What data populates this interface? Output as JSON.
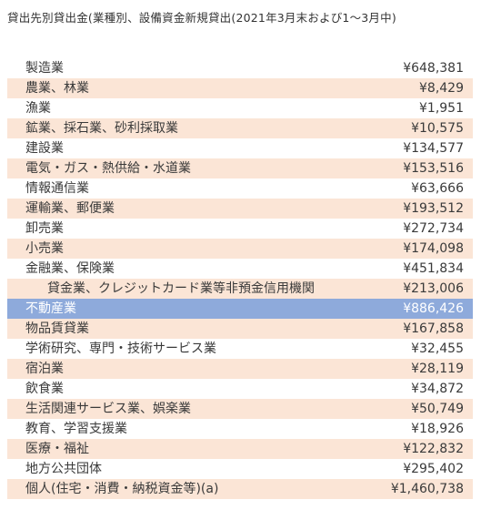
{
  "title": "貸出先別貸出金(業種別、設備資金新規貸出(2021年3月末および1～3月中)",
  "colors": {
    "alt_row": "#fbe5d6",
    "highlight_row": "#8eaadb",
    "highlight_text": "#ffffff"
  },
  "rows": [
    {
      "label": "製造業",
      "value": "¥648,381"
    },
    {
      "label": "農業、林業",
      "value": "¥8,429"
    },
    {
      "label": "漁業",
      "value": "¥1,951"
    },
    {
      "label": "鉱業、採石業、砂利採取業",
      "value": "¥10,575"
    },
    {
      "label": "建設業",
      "value": "¥134,577"
    },
    {
      "label": "電気・ガス・熱供給・水道業",
      "value": "¥153,516"
    },
    {
      "label": "情報通信業",
      "value": "¥63,666"
    },
    {
      "label": "運輸業、郵便業",
      "value": "¥193,512"
    },
    {
      "label": "卸売業",
      "value": "¥272,734"
    },
    {
      "label": "小売業",
      "value": "¥174,098"
    },
    {
      "label": "金融業、保険業",
      "value": "¥451,834"
    },
    {
      "label": "貸金業、クレジットカード業等非預金信用機関",
      "value": "¥213,006"
    },
    {
      "label": "不動産業",
      "value": "¥886,426"
    },
    {
      "label": "物品賃貸業",
      "value": "¥167,858"
    },
    {
      "label": "学術研究、専門・技術サービス業",
      "value": "¥32,455"
    },
    {
      "label": "宿泊業",
      "value": "¥28,119"
    },
    {
      "label": "飲食業",
      "value": "¥34,872"
    },
    {
      "label": "生活関連サービス業、娯楽業",
      "value": "¥50,749"
    },
    {
      "label": "教育、学習支援業",
      "value": "¥18,926"
    },
    {
      "label": "医療・福祉",
      "value": "¥122,832"
    },
    {
      "label": "地方公共団体",
      "value": "¥295,402"
    },
    {
      "label": "個人(住宅・消費・納税資金等)(a)",
      "value": "¥1,460,738"
    }
  ]
}
